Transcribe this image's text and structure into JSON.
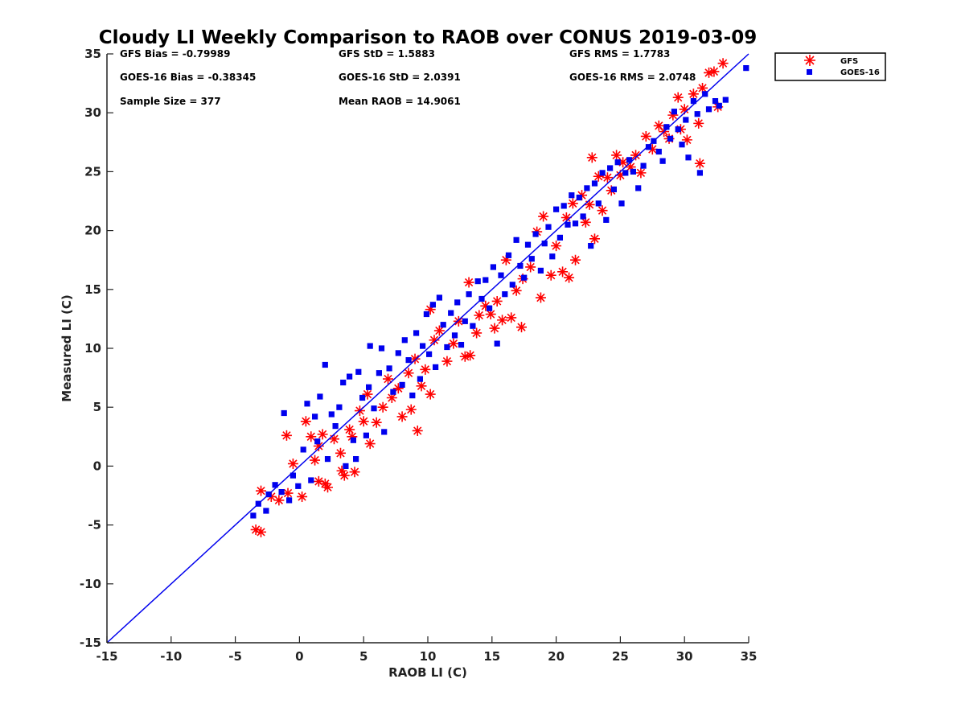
{
  "colors": {
    "gfs": "#ff0000",
    "goes": "#0000ee",
    "line": "#0000ee",
    "axis": "#222222"
  },
  "chart_data": {
    "type": "scatter",
    "title": "Cloudy LI Weekly Comparison to RAOB over CONUS 2019-03-09",
    "xlabel": "RAOB LI (C)",
    "ylabel": "Measured LI (C)",
    "xlim": [
      -15,
      35
    ],
    "ylim": [
      -15,
      35
    ],
    "xticks": [
      "-15",
      "-10",
      "-5",
      "0",
      "5",
      "10",
      "15",
      "20",
      "25",
      "30",
      "35"
    ],
    "yticks": [
      "-15",
      "-10",
      "-5",
      "0",
      "5",
      "10",
      "15",
      "20",
      "25",
      "30",
      "35"
    ],
    "grid": false,
    "legend": {
      "placement": "top-right, outside",
      "entries": [
        {
          "name": "GFS",
          "marker": "asterisk",
          "color": "#ff0000"
        },
        {
          "name": "GOES-16",
          "marker": "square",
          "color": "#0000ee"
        }
      ]
    },
    "stats": {
      "gfs_bias": "GFS Bias = -0.79989",
      "goes_bias": "GOES-16 Bias = -0.38345",
      "sample_size": "Sample Size = 377",
      "gfs_std": "GFS StD = 1.5883",
      "goes_std": "GOES-16 StD = 2.0391",
      "mean_raob": "Mean RAOB = 14.9061",
      "gfs_rms": "GFS RMS = 1.7783",
      "goes_rms": "GOES-16 RMS = 2.0748"
    },
    "reference_line": {
      "label": "1:1",
      "from": [
        -15,
        -15
      ],
      "to": [
        35,
        35
      ]
    },
    "series": [
      {
        "name": "GFS",
        "marker": "asterisk",
        "points": [
          [
            -3.4,
            -5.4
          ],
          [
            -3.0,
            -5.6
          ],
          [
            -3.0,
            -2.1
          ],
          [
            -2.2,
            -2.6
          ],
          [
            -1.6,
            -2.9
          ],
          [
            -0.9,
            -2.3
          ],
          [
            -1.0,
            2.6
          ],
          [
            -0.5,
            0.2
          ],
          [
            0.2,
            -2.6
          ],
          [
            0.5,
            3.8
          ],
          [
            0.9,
            2.5
          ],
          [
            1.2,
            0.5
          ],
          [
            1.5,
            1.7
          ],
          [
            1.5,
            -1.3
          ],
          [
            1.8,
            2.7
          ],
          [
            2.0,
            -1.5
          ],
          [
            2.2,
            -1.8
          ],
          [
            2.7,
            2.3
          ],
          [
            3.2,
            1.1
          ],
          [
            3.3,
            -0.4
          ],
          [
            3.5,
            -0.8
          ],
          [
            3.9,
            3.1
          ],
          [
            4.1,
            2.5
          ],
          [
            4.3,
            -0.5
          ],
          [
            4.7,
            4.7
          ],
          [
            5.0,
            3.8
          ],
          [
            5.3,
            6.1
          ],
          [
            5.5,
            1.9
          ],
          [
            6.0,
            3.7
          ],
          [
            6.5,
            5.0
          ],
          [
            6.9,
            7.4
          ],
          [
            7.2,
            5.8
          ],
          [
            7.7,
            6.6
          ],
          [
            8.0,
            4.2
          ],
          [
            8.5,
            7.9
          ],
          [
            8.7,
            4.8
          ],
          [
            9.0,
            9.1
          ],
          [
            9.2,
            3.0
          ],
          [
            9.5,
            6.8
          ],
          [
            9.8,
            8.2
          ],
          [
            10.2,
            6.1
          ],
          [
            10.2,
            13.3
          ],
          [
            10.5,
            10.7
          ],
          [
            10.9,
            11.5
          ],
          [
            11.5,
            8.9
          ],
          [
            12.0,
            10.4
          ],
          [
            12.4,
            12.3
          ],
          [
            12.9,
            9.3
          ],
          [
            13.2,
            15.6
          ],
          [
            13.3,
            9.4
          ],
          [
            13.8,
            11.3
          ],
          [
            14.0,
            12.8
          ],
          [
            14.5,
            13.6
          ],
          [
            14.9,
            12.9
          ],
          [
            15.2,
            11.7
          ],
          [
            15.4,
            14.0
          ],
          [
            15.8,
            12.4
          ],
          [
            16.1,
            17.5
          ],
          [
            16.5,
            12.6
          ],
          [
            16.9,
            14.9
          ],
          [
            17.3,
            11.8
          ],
          [
            17.4,
            15.9
          ],
          [
            18.0,
            16.9
          ],
          [
            18.5,
            19.9
          ],
          [
            18.8,
            14.3
          ],
          [
            19.0,
            21.2
          ],
          [
            19.6,
            16.2
          ],
          [
            20.0,
            18.7
          ],
          [
            20.5,
            16.5
          ],
          [
            20.8,
            21.1
          ],
          [
            21.0,
            16.0
          ],
          [
            21.3,
            22.3
          ],
          [
            21.5,
            17.5
          ],
          [
            22.0,
            23.0
          ],
          [
            22.3,
            20.7
          ],
          [
            22.6,
            22.2
          ],
          [
            22.8,
            26.2
          ],
          [
            23.0,
            19.3
          ],
          [
            23.3,
            24.6
          ],
          [
            23.6,
            21.7
          ],
          [
            24.0,
            24.5
          ],
          [
            24.3,
            23.4
          ],
          [
            24.7,
            26.4
          ],
          [
            25.0,
            24.7
          ],
          [
            25.2,
            25.8
          ],
          [
            25.8,
            25.4
          ],
          [
            26.2,
            26.4
          ],
          [
            26.6,
            24.9
          ],
          [
            27.0,
            28.0
          ],
          [
            27.5,
            26.9
          ],
          [
            28.0,
            28.9
          ],
          [
            28.4,
            28.4
          ],
          [
            28.8,
            27.8
          ],
          [
            29.1,
            29.8
          ],
          [
            29.5,
            31.3
          ],
          [
            29.7,
            28.6
          ],
          [
            30.0,
            30.3
          ],
          [
            30.2,
            27.7
          ],
          [
            30.7,
            31.6
          ],
          [
            31.1,
            29.1
          ],
          [
            31.2,
            25.7
          ],
          [
            31.4,
            32.1
          ],
          [
            31.9,
            33.4
          ],
          [
            32.3,
            33.5
          ],
          [
            32.6,
            30.5
          ],
          [
            33.0,
            34.2
          ]
        ]
      },
      {
        "name": "GOES-16",
        "marker": "square",
        "points": [
          [
            -3.6,
            -4.2
          ],
          [
            -3.2,
            -3.2
          ],
          [
            -2.6,
            -3.8
          ],
          [
            -2.4,
            -2.4
          ],
          [
            -1.9,
            -1.6
          ],
          [
            -1.4,
            -2.2
          ],
          [
            -1.2,
            4.5
          ],
          [
            -0.8,
            -2.9
          ],
          [
            -0.5,
            -0.8
          ],
          [
            -0.1,
            -1.7
          ],
          [
            0.3,
            1.4
          ],
          [
            0.6,
            5.3
          ],
          [
            0.9,
            -1.2
          ],
          [
            1.2,
            4.2
          ],
          [
            1.4,
            2.1
          ],
          [
            1.6,
            5.9
          ],
          [
            2.0,
            8.6
          ],
          [
            2.2,
            0.6
          ],
          [
            2.5,
            4.4
          ],
          [
            2.8,
            3.4
          ],
          [
            3.1,
            5.0
          ],
          [
            3.4,
            7.1
          ],
          [
            3.6,
            0.0
          ],
          [
            3.9,
            7.6
          ],
          [
            4.2,
            2.2
          ],
          [
            4.4,
            0.6
          ],
          [
            4.6,
            8.0
          ],
          [
            4.9,
            5.8
          ],
          [
            5.2,
            2.6
          ],
          [
            5.4,
            6.7
          ],
          [
            5.5,
            10.2
          ],
          [
            5.8,
            4.9
          ],
          [
            6.2,
            7.9
          ],
          [
            6.4,
            10.0
          ],
          [
            6.6,
            2.9
          ],
          [
            7.0,
            8.3
          ],
          [
            7.3,
            6.3
          ],
          [
            7.7,
            9.6
          ],
          [
            8.0,
            6.9
          ],
          [
            8.2,
            10.7
          ],
          [
            8.5,
            9.0
          ],
          [
            8.8,
            6.0
          ],
          [
            9.1,
            11.3
          ],
          [
            9.4,
            7.4
          ],
          [
            9.6,
            10.2
          ],
          [
            9.9,
            12.9
          ],
          [
            10.1,
            9.5
          ],
          [
            10.4,
            13.7
          ],
          [
            10.6,
            8.4
          ],
          [
            10.9,
            14.3
          ],
          [
            11.2,
            12.0
          ],
          [
            11.5,
            10.1
          ],
          [
            11.8,
            13.0
          ],
          [
            12.1,
            11.1
          ],
          [
            12.3,
            13.9
          ],
          [
            12.6,
            10.3
          ],
          [
            12.9,
            12.3
          ],
          [
            13.2,
            14.6
          ],
          [
            13.5,
            11.9
          ],
          [
            13.9,
            15.7
          ],
          [
            14.2,
            14.2
          ],
          [
            14.5,
            15.8
          ],
          [
            14.8,
            13.4
          ],
          [
            15.1,
            16.9
          ],
          [
            15.4,
            10.4
          ],
          [
            15.7,
            16.2
          ],
          [
            16.0,
            14.6
          ],
          [
            16.3,
            17.9
          ],
          [
            16.6,
            15.4
          ],
          [
            16.9,
            19.2
          ],
          [
            17.2,
            17.0
          ],
          [
            17.5,
            16.0
          ],
          [
            17.8,
            18.8
          ],
          [
            18.1,
            17.6
          ],
          [
            18.4,
            19.7
          ],
          [
            18.8,
            16.6
          ],
          [
            19.1,
            18.9
          ],
          [
            19.4,
            20.3
          ],
          [
            19.7,
            17.8
          ],
          [
            20.0,
            21.8
          ],
          [
            20.3,
            19.4
          ],
          [
            20.6,
            22.1
          ],
          [
            20.9,
            20.5
          ],
          [
            21.2,
            23.0
          ],
          [
            21.5,
            20.6
          ],
          [
            21.8,
            22.8
          ],
          [
            22.1,
            21.2
          ],
          [
            22.4,
            23.6
          ],
          [
            22.7,
            18.7
          ],
          [
            23.0,
            24.0
          ],
          [
            23.3,
            22.3
          ],
          [
            23.6,
            24.9
          ],
          [
            23.9,
            20.9
          ],
          [
            24.2,
            25.3
          ],
          [
            24.5,
            23.5
          ],
          [
            24.8,
            25.8
          ],
          [
            25.1,
            22.3
          ],
          [
            25.4,
            24.9
          ],
          [
            25.7,
            26.0
          ],
          [
            26.0,
            25.0
          ],
          [
            26.4,
            23.6
          ],
          [
            26.8,
            25.5
          ],
          [
            27.2,
            27.1
          ],
          [
            27.6,
            27.6
          ],
          [
            28.0,
            26.7
          ],
          [
            28.3,
            25.9
          ],
          [
            28.6,
            28.8
          ],
          [
            28.9,
            27.8
          ],
          [
            29.2,
            30.1
          ],
          [
            29.5,
            28.6
          ],
          [
            29.8,
            27.3
          ],
          [
            30.1,
            29.4
          ],
          [
            30.3,
            26.2
          ],
          [
            30.7,
            31.0
          ],
          [
            31.0,
            29.9
          ],
          [
            31.2,
            24.9
          ],
          [
            31.6,
            31.6
          ],
          [
            31.9,
            30.3
          ],
          [
            32.4,
            31.0
          ],
          [
            32.7,
            30.6
          ],
          [
            33.2,
            31.1
          ],
          [
            34.8,
            33.8
          ]
        ]
      }
    ]
  }
}
